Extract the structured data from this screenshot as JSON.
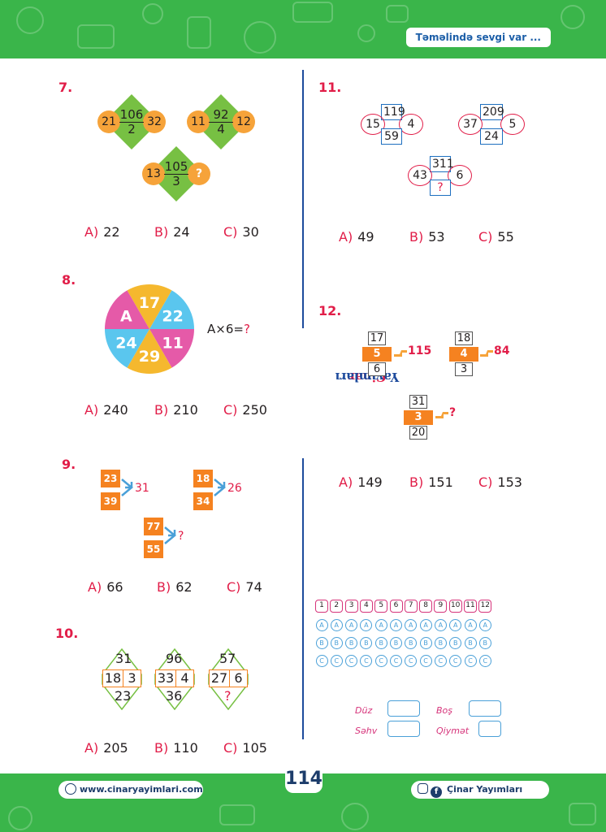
{
  "header": {
    "tagline": "Təməlində sevgi var ..."
  },
  "footer": {
    "website": "www.cinaryayimlari.com",
    "social": "Çinar Yayımları",
    "page_number": "114"
  },
  "divider_text": "Çinar Yayımları",
  "q7": {
    "number": "7.",
    "items": [
      {
        "left": "21",
        "top": "106",
        "bottom": "2",
        "right": "32"
      },
      {
        "left": "11",
        "top": "92",
        "bottom": "4",
        "right": "12"
      },
      {
        "left": "13",
        "top": "105",
        "bottom": "3",
        "right": "?"
      }
    ],
    "answers": [
      {
        "letter": "A)",
        "value": "22"
      },
      {
        "letter": "B)",
        "value": "24"
      },
      {
        "letter": "C)",
        "value": "30"
      }
    ]
  },
  "q8": {
    "number": "8.",
    "slices": [
      "17",
      "22",
      "11",
      "29",
      "24",
      "A"
    ],
    "equation": "A×6=",
    "equation_q": "?",
    "answers": [
      {
        "letter": "A)",
        "value": "240"
      },
      {
        "letter": "B)",
        "value": "210"
      },
      {
        "letter": "C)",
        "value": "250"
      }
    ]
  },
  "q9": {
    "number": "9.",
    "items": [
      {
        "top": "23",
        "bottom": "39",
        "result": "31"
      },
      {
        "top": "18",
        "bottom": "34",
        "result": "26"
      },
      {
        "top": "77",
        "bottom": "55",
        "result": "?"
      }
    ],
    "answers": [
      {
        "letter": "A)",
        "value": "66"
      },
      {
        "letter": "B)",
        "value": "62"
      },
      {
        "letter": "C)",
        "value": "74"
      }
    ]
  },
  "q10": {
    "number": "10.",
    "items": [
      {
        "top": "31",
        "left": "18",
        "right": "3",
        "bottom": "23"
      },
      {
        "top": "96",
        "left": "33",
        "right": "4",
        "bottom": "36"
      },
      {
        "top": "57",
        "left": "27",
        "right": "6",
        "bottom": "?"
      }
    ],
    "answers": [
      {
        "letter": "A)",
        "value": "205"
      },
      {
        "letter": "B)",
        "value": "110"
      },
      {
        "letter": "C)",
        "value": "105"
      }
    ]
  },
  "q11": {
    "number": "11.",
    "items": [
      {
        "top": "119",
        "left": "15",
        "right": "4",
        "bottom": "59"
      },
      {
        "top": "209",
        "left": "37",
        "right": "5",
        "bottom": "24"
      },
      {
        "top": "311",
        "left": "43",
        "right": "6",
        "bottom": "?"
      }
    ],
    "answers": [
      {
        "letter": "A)",
        "value": "49"
      },
      {
        "letter": "B)",
        "value": "53"
      },
      {
        "letter": "C)",
        "value": "55"
      }
    ]
  },
  "q12": {
    "number": "12.",
    "items": [
      {
        "top": "17",
        "mid": "5",
        "bottom": "6",
        "result": "115"
      },
      {
        "top": "18",
        "mid": "4",
        "bottom": "3",
        "result": "84"
      },
      {
        "top": "31",
        "mid": "3",
        "bottom": "20",
        "result": "?"
      }
    ],
    "answers": [
      {
        "letter": "A)",
        "value": "149"
      },
      {
        "letter": "B)",
        "value": "151"
      },
      {
        "letter": "C)",
        "value": "153"
      }
    ]
  },
  "answer_sheet": {
    "numbers": [
      "1",
      "2",
      "3",
      "4",
      "5",
      "6",
      "7",
      "8",
      "9",
      "10",
      "11",
      "12"
    ],
    "options": [
      "A",
      "B",
      "C"
    ],
    "labels": {
      "duz": "Düz",
      "bos": "Boş",
      "sehv": "Səhv",
      "qiymet": "Qiymət"
    }
  },
  "colors": {
    "green": "#3ab54a",
    "red": "#e11d48",
    "orange": "#f58220",
    "blue": "#1d4a9c"
  }
}
